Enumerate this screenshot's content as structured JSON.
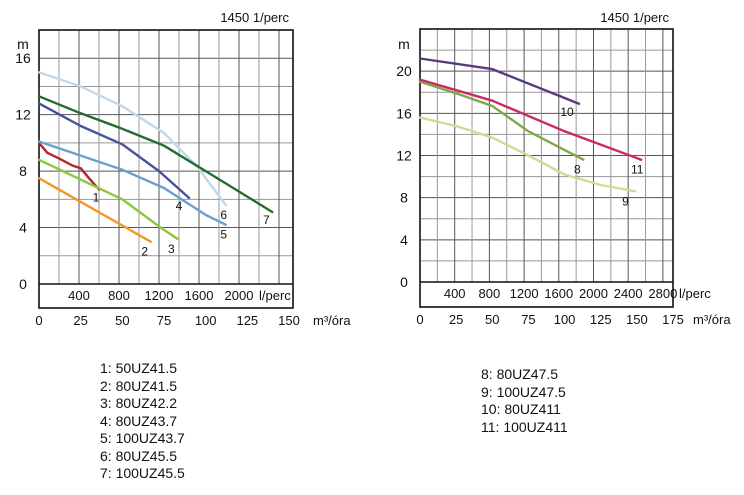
{
  "chart_data": [
    {
      "type": "line",
      "title": "1450 1/perc",
      "ylabel": "m",
      "xlabel": "m³/óra",
      "x2label": "l/perc",
      "ylim": [
        0,
        18
      ],
      "xlim": [
        0,
        152
      ],
      "yticks": [
        0,
        4,
        8,
        12,
        16
      ],
      "xticks": [
        0,
        25,
        50,
        75,
        100,
        125,
        150
      ],
      "x2ticks": [
        400,
        800,
        1200,
        1600,
        2000
      ],
      "grid": true,
      "series": [
        {
          "name": "1",
          "color": "#b3262a",
          "x": [
            0,
            5,
            12,
            20,
            25,
            30,
            36
          ],
          "y": [
            10,
            9.3,
            8.9,
            8.4,
            8.2,
            7.5,
            6.7
          ]
        },
        {
          "name": "2",
          "color": "#f0962a",
          "x": [
            0,
            67
          ],
          "y": [
            7.5,
            3.0
          ]
        },
        {
          "name": "3",
          "color": "#8cc63f",
          "x": [
            0,
            50,
            73,
            83
          ],
          "y": [
            8.8,
            6.0,
            4.0,
            3.2
          ]
        },
        {
          "name": "4",
          "color": "#46539b",
          "x": [
            0,
            25,
            50,
            72,
            90
          ],
          "y": [
            12.8,
            11.2,
            9.9,
            8.0,
            6.1
          ]
        },
        {
          "name": "5",
          "color": "#6a9fcf",
          "x": [
            0,
            25,
            50,
            75,
            100,
            112
          ],
          "y": [
            10.1,
            9.1,
            8.1,
            6.8,
            4.9,
            4.2
          ]
        },
        {
          "name": "6",
          "color": "#c3d7ea",
          "x": [
            0,
            25,
            50,
            75,
            95,
            112
          ],
          "y": [
            15.0,
            14.0,
            12.6,
            10.7,
            8.3,
            5.6
          ]
        },
        {
          "name": "7",
          "color": "#236b2e",
          "x": [
            0,
            25,
            50,
            75,
            100,
            140
          ],
          "y": [
            13.3,
            12.1,
            11.0,
            9.8,
            8.0,
            5.1
          ]
        }
      ]
    },
    {
      "type": "line",
      "title": "1450 1/perc",
      "ylabel": "m",
      "xlabel": "m³/óra",
      "x2label": "l/perc",
      "ylim": [
        0,
        24
      ],
      "xlim": [
        0,
        175
      ],
      "yticks": [
        0,
        4,
        8,
        12,
        16,
        20
      ],
      "xticks": [
        0,
        25,
        50,
        75,
        100,
        125,
        150,
        175
      ],
      "x2ticks": [
        400,
        800,
        1200,
        1600,
        2000,
        2400,
        2800
      ],
      "grid": true,
      "series": [
        {
          "name": "8",
          "color": "#7fa84a",
          "x": [
            0,
            25,
            50,
            75,
            113
          ],
          "y": [
            19.0,
            17.9,
            16.7,
            14.3,
            11.6
          ]
        },
        {
          "name": "9",
          "color": "#cfdc96",
          "x": [
            0,
            25,
            50,
            75,
            100,
            125,
            149
          ],
          "y": [
            15.6,
            14.8,
            13.7,
            12.0,
            10.2,
            9.2,
            8.6
          ]
        },
        {
          "name": "10",
          "color": "#5a3a78",
          "x": [
            0,
            50,
            110
          ],
          "y": [
            21.2,
            20.2,
            16.9
          ]
        },
        {
          "name": "11",
          "color": "#cc2a63",
          "x": [
            0,
            50,
            100,
            153
          ],
          "y": [
            19.2,
            17.2,
            14.3,
            11.6
          ]
        }
      ]
    }
  ],
  "legend_left": [
    "1: 50UZ41.5",
    "2: 80UZ41.5",
    "3: 80UZ42.2",
    "4: 80UZ43.7",
    "5: 100UZ43.7",
    "6: 80UZ45.5",
    "7: 100UZ45.5"
  ],
  "legend_right": [
    "8: 80UZ47.5",
    "9: 100UZ47.5",
    "10: 80UZ411",
    "11: 100UZ411"
  ]
}
